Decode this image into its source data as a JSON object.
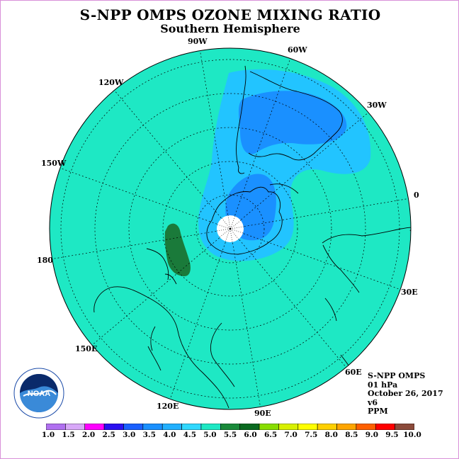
{
  "title": "S-NPP OMPS OZONE MIXING RATIO",
  "subtitle": "Southern Hemisphere",
  "longitude_labels": [
    "90W",
    "60W",
    "30W",
    "0",
    "30E",
    "60E",
    "90E",
    "120E",
    "150E",
    "180",
    "150W",
    "120W"
  ],
  "info": {
    "instrument": "S-NPP OMPS",
    "level": "01 hPa",
    "date": "October 26, 2017",
    "version": "v6",
    "units": "PPM"
  },
  "logo_text": "NOAA",
  "colors": {
    "background_field": "#1ee8c4",
    "light_blue": "#22c4ff",
    "mid_blue": "#1a90ff",
    "dark_green": "#1a7a3a",
    "pole_hole": "#ffffff",
    "border": "#d890d8"
  },
  "colorbar": {
    "labels": [
      "1.0",
      "1.5",
      "2.0",
      "2.5",
      "3.0",
      "3.5",
      "4.0",
      "4.5",
      "5.0",
      "5.5",
      "6.0",
      "6.5",
      "7.0",
      "7.5",
      "8.0",
      "8.5",
      "9.0",
      "9.5",
      "10.0"
    ],
    "colors": [
      "#b070f0",
      "#d8a8f8",
      "#ff00ff",
      "#2a10f0",
      "#1a60ff",
      "#1a90ff",
      "#22b0ff",
      "#30d8ff",
      "#1ee8c4",
      "#1a8a3a",
      "#0a6a20",
      "#88dd00",
      "#d8f000",
      "#ffff00",
      "#ffd000",
      "#ffa500",
      "#ff6000",
      "#ff0000",
      "#8b4a3a"
    ]
  }
}
